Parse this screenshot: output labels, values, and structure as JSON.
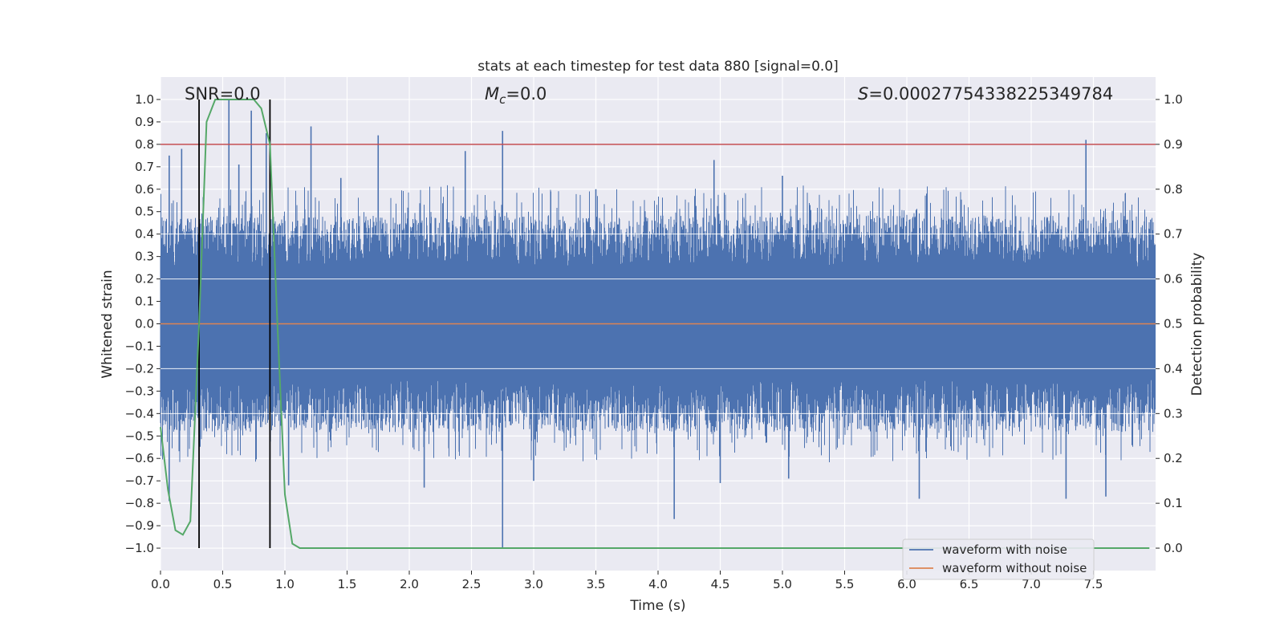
{
  "chart_data": {
    "type": "line",
    "title": "stats at each timestep for test data 880 [signal=0.0]",
    "xlabel": "Time (s)",
    "ylabel_left": "Whitened strain",
    "ylabel_right": "Detection probability",
    "xlim": [
      0.0,
      8.0
    ],
    "ylim_left": [
      -1.1,
      1.1
    ],
    "ylim_right": [
      -0.05,
      1.05
    ],
    "x_ticks": [
      0.0,
      0.5,
      1.0,
      1.5,
      2.0,
      2.5,
      3.0,
      3.5,
      4.0,
      4.5,
      5.0,
      5.5,
      6.0,
      6.5,
      7.0,
      7.5
    ],
    "x_tick_labels": [
      "0.0",
      "0.5",
      "1.0",
      "1.5",
      "2.0",
      "2.5",
      "3.0",
      "3.5",
      "4.0",
      "4.5",
      "5.0",
      "5.5",
      "6.0",
      "6.5",
      "7.0",
      "7.5"
    ],
    "y_left_ticks": [
      1.0,
      0.9,
      0.8,
      0.7,
      0.6,
      0.5,
      0.4,
      0.3,
      0.2,
      0.1,
      0.0,
      -0.1,
      -0.2,
      -0.3,
      -0.4,
      -0.5,
      -0.6,
      -0.7,
      -0.8,
      -0.9,
      -1.0
    ],
    "y_left_tick_labels": [
      "1.0",
      "0.9",
      "0.8",
      "0.7",
      "0.6",
      "0.5",
      "0.4",
      "0.3",
      "0.2",
      "0.1",
      "0.0",
      "−0.1",
      "−0.2",
      "−0.3",
      "−0.4",
      "−0.5",
      "−0.6",
      "−0.7",
      "−0.8",
      "−0.9",
      "−1.0"
    ],
    "y_right_ticks": [
      1.0,
      0.9,
      0.8,
      0.7,
      0.6,
      0.5,
      0.4,
      0.3,
      0.2,
      0.1,
      0.0
    ],
    "y_right_tick_labels": [
      "1.0",
      "0.9",
      "0.8",
      "0.7",
      "0.6",
      "0.5",
      "0.4",
      "0.3",
      "0.2",
      "0.1",
      "0.0"
    ],
    "grid": true,
    "legend_position": "bottom-right",
    "annotations": {
      "snr": "SNR=0.0",
      "mc_symbol": "M",
      "mc_sub": "c",
      "mc_value": "=0.0",
      "s_symbol": "S",
      "s_value": "=0.00027754338225349784"
    },
    "threshold_right": 0.9,
    "vertical_markers_x": [
      0.31,
      0.88
    ],
    "series": [
      {
        "name": "waveform with noise",
        "color": "#4c72b0",
        "axis": "left",
        "description_range": [
          -1.0,
          1.0
        ],
        "peaks_pos": [
          [
            0.55,
            1.0
          ],
          [
            0.73,
            0.95
          ],
          [
            0.07,
            0.75
          ],
          [
            0.85,
            0.85
          ],
          [
            1.21,
            0.88
          ],
          [
            1.75,
            0.84
          ],
          [
            2.75,
            0.86
          ],
          [
            7.44,
            0.82
          ],
          [
            2.45,
            0.77
          ],
          [
            0.17,
            0.78
          ],
          [
            0.63,
            0.71
          ],
          [
            4.45,
            0.73
          ],
          [
            1.45,
            0.65
          ],
          [
            3.5,
            0.6
          ],
          [
            5.0,
            0.66
          ]
        ],
        "peaks_neg": [
          [
            2.75,
            -1.0
          ],
          [
            4.13,
            -0.87
          ],
          [
            6.1,
            -0.78
          ],
          [
            7.28,
            -0.78
          ],
          [
            7.6,
            -0.77
          ],
          [
            0.07,
            -0.79
          ],
          [
            1.03,
            -0.72
          ],
          [
            2.12,
            -0.73
          ],
          [
            3.0,
            -0.7
          ],
          [
            4.5,
            -0.71
          ],
          [
            5.05,
            -0.69
          ]
        ]
      },
      {
        "name": "waveform without noise",
        "color": "#dd8452",
        "axis": "left",
        "x": [
          0.0,
          8.0
        ],
        "y": [
          0.0,
          0.0
        ]
      },
      {
        "name": "detection probability",
        "color": "#55a868",
        "axis": "right",
        "x": [
          0.0,
          0.06,
          0.12,
          0.18,
          0.24,
          0.31,
          0.37,
          0.44,
          0.5,
          0.56,
          0.63,
          0.69,
          0.75,
          0.81,
          0.88,
          0.94,
          1.0,
          1.06,
          1.12,
          1.5,
          2.0,
          3.0,
          4.0,
          5.0,
          6.0,
          7.0,
          7.95
        ],
        "y": [
          0.27,
          0.13,
          0.04,
          0.03,
          0.06,
          0.5,
          0.95,
          1.0,
          1.0,
          1.0,
          1.0,
          1.0,
          1.0,
          0.98,
          0.9,
          0.5,
          0.12,
          0.01,
          0.0,
          0.0,
          0.0,
          0.0,
          0.0,
          0.0,
          0.0,
          0.0,
          0.0
        ]
      }
    ],
    "colors": {
      "background": "#eaeaf2",
      "grid": "#ffffff",
      "threshold": "#c44e52",
      "markers": "#000000"
    }
  }
}
